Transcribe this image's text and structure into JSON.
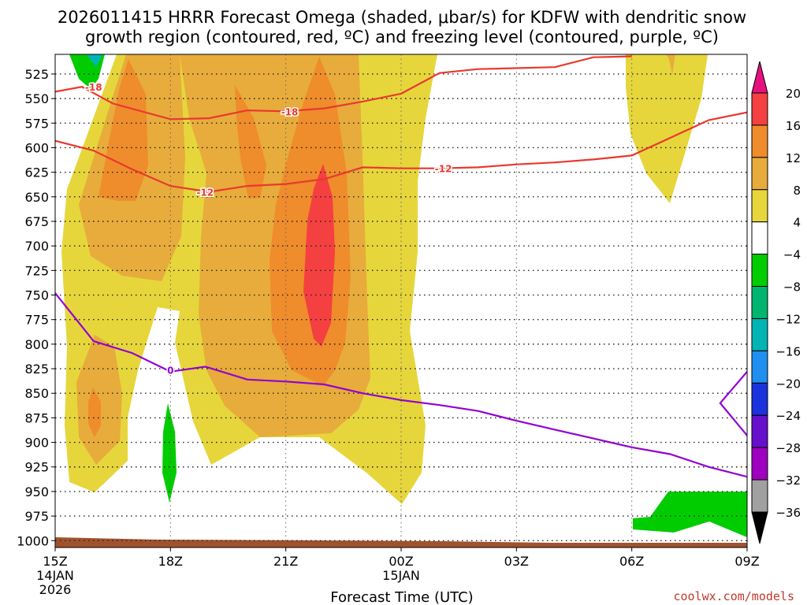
{
  "chart_data": {
    "type": "heatmap",
    "title_line1": "2026011415 HRRR Forecast Omega (shaded, μbar/s) for KDFW with dendritic snow",
    "title_line2": "growth region (contoured, red, ºC) and freezing level (contoured, purple, ºC)",
    "xlabel": "Forecast Time (UTC)",
    "ylabel": "",
    "x_ticks": [
      {
        "value": 0,
        "label": "15Z",
        "sub1": "14JAN",
        "sub2": "2026"
      },
      {
        "value": 3,
        "label": "18Z",
        "sub1": "",
        "sub2": ""
      },
      {
        "value": 6,
        "label": "21Z",
        "sub1": "",
        "sub2": ""
      },
      {
        "value": 9,
        "label": "00Z",
        "sub1": "15JAN",
        "sub2": ""
      },
      {
        "value": 12,
        "label": "03Z",
        "sub1": "",
        "sub2": ""
      },
      {
        "value": 15,
        "label": "06Z",
        "sub1": "",
        "sub2": ""
      },
      {
        "value": 18,
        "label": "09Z",
        "sub1": "",
        "sub2": ""
      }
    ],
    "y_ticks": [
      525,
      550,
      575,
      600,
      625,
      650,
      675,
      700,
      725,
      750,
      775,
      800,
      825,
      850,
      875,
      900,
      925,
      950,
      975,
      1000
    ],
    "xlim": [
      0,
      18
    ],
    "ylim": [
      505,
      1007
    ],
    "colorbar": {
      "levels": [
        20,
        16,
        12,
        8,
        4,
        -4,
        -8,
        -12,
        -16,
        -20,
        -24,
        -28,
        -32,
        -36
      ],
      "colors": [
        "#f44040",
        "#ef8c2c",
        "#e7ac3b",
        "#e6d63c",
        "#ffffff",
        "#00cc00",
        "#00b66e",
        "#00b4b4",
        "#1f8ff0",
        "#1a33dd",
        "#6610cc",
        "#9f00bf",
        "#a0a0a0"
      ],
      "top_color": "#e6117f",
      "bottom_color": "#000000"
    },
    "dgz_contours": [
      {
        "label": "-18",
        "points": [
          [
            0,
            543
          ],
          [
            0.7,
            538
          ],
          [
            1.5,
            555
          ],
          [
            3,
            571
          ],
          [
            4,
            570
          ],
          [
            5,
            562
          ],
          [
            6,
            563
          ],
          [
            7,
            560
          ],
          [
            8,
            553
          ],
          [
            9,
            545
          ],
          [
            10,
            524
          ],
          [
            11,
            520
          ],
          [
            12,
            519
          ],
          [
            13,
            518
          ],
          [
            14,
            508
          ],
          [
            15,
            507
          ]
        ],
        "label_at": [
          [
            1.0,
            538
          ],
          [
            6.1,
            563
          ]
        ]
      },
      {
        "label": "-12",
        "points": [
          [
            0,
            593
          ],
          [
            1,
            603
          ],
          [
            2,
            622
          ],
          [
            3,
            639
          ],
          [
            4,
            645
          ],
          [
            5,
            639
          ],
          [
            6,
            637
          ],
          [
            7,
            632
          ],
          [
            8,
            620
          ],
          [
            9,
            621
          ],
          [
            10,
            621
          ],
          [
            11,
            620
          ],
          [
            12,
            617
          ],
          [
            13,
            615
          ],
          [
            14,
            612
          ],
          [
            15,
            608
          ],
          [
            16,
            590
          ],
          [
            17,
            572
          ],
          [
            18,
            564
          ]
        ],
        "label_at": [
          [
            3.9,
            645
          ],
          [
            10.1,
            621
          ]
        ]
      }
    ],
    "freezing_level": [
      {
        "label": "0",
        "points": [
          [
            0,
            748
          ],
          [
            1,
            797
          ],
          [
            2,
            809
          ],
          [
            3,
            828
          ],
          [
            3.9,
            823
          ],
          [
            4,
            824
          ],
          [
            5,
            836
          ],
          [
            6,
            838
          ],
          [
            7,
            841
          ],
          [
            8,
            850
          ],
          [
            9,
            857
          ],
          [
            10,
            862
          ],
          [
            11,
            868
          ],
          [
            12,
            878
          ],
          [
            13,
            887
          ],
          [
            14,
            896
          ],
          [
            15,
            905
          ],
          [
            16,
            912
          ],
          [
            17,
            925
          ],
          [
            18,
            935
          ]
        ],
        "label_at": [
          [
            3,
            826
          ]
        ]
      },
      {
        "label": "",
        "points": [
          [
            18,
            828
          ],
          [
            17.3,
            860
          ],
          [
            18,
            893
          ]
        ],
        "label_at": []
      }
    ],
    "surface_color": "#a0522d",
    "credit": "coolwx.com/models"
  }
}
